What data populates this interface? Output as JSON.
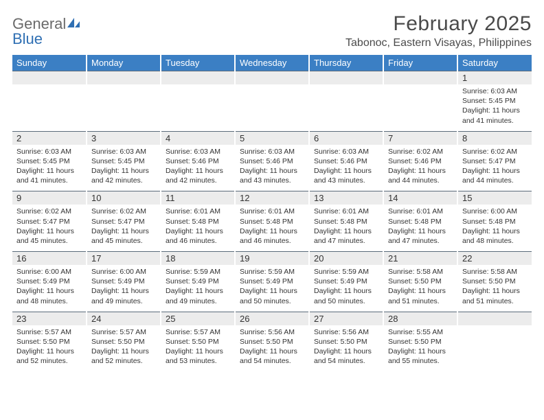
{
  "brand": {
    "general": "General",
    "blue": "Blue"
  },
  "title": "February 2025",
  "location": "Tabonoc, Eastern Visayas, Philippines",
  "colors": {
    "header_bg": "#3b7fc4",
    "header_text": "#ffffff",
    "numrow_bg": "#ececec",
    "numrow_border": "#5a6b7a",
    "body_text": "#333333",
    "page_bg": "#ffffff",
    "logo_gray": "#6a6a6a",
    "logo_blue": "#2f6fb3"
  },
  "typography": {
    "title_fontsize": 30,
    "location_fontsize": 16,
    "dayhead_fontsize": 13,
    "cell_fontsize": 10.5
  },
  "day_names": [
    "Sunday",
    "Monday",
    "Tuesday",
    "Wednesday",
    "Thursday",
    "Friday",
    "Saturday"
  ],
  "weeks": [
    {
      "nums": [
        "",
        "",
        "",
        "",
        "",
        "",
        "1"
      ],
      "cells": [
        null,
        null,
        null,
        null,
        null,
        null,
        {
          "sunrise": "Sunrise: 6:03 AM",
          "sunset": "Sunset: 5:45 PM",
          "daylight": "Daylight: 11 hours and 41 minutes."
        }
      ]
    },
    {
      "nums": [
        "2",
        "3",
        "4",
        "5",
        "6",
        "7",
        "8"
      ],
      "cells": [
        {
          "sunrise": "Sunrise: 6:03 AM",
          "sunset": "Sunset: 5:45 PM",
          "daylight": "Daylight: 11 hours and 41 minutes."
        },
        {
          "sunrise": "Sunrise: 6:03 AM",
          "sunset": "Sunset: 5:45 PM",
          "daylight": "Daylight: 11 hours and 42 minutes."
        },
        {
          "sunrise": "Sunrise: 6:03 AM",
          "sunset": "Sunset: 5:46 PM",
          "daylight": "Daylight: 11 hours and 42 minutes."
        },
        {
          "sunrise": "Sunrise: 6:03 AM",
          "sunset": "Sunset: 5:46 PM",
          "daylight": "Daylight: 11 hours and 43 minutes."
        },
        {
          "sunrise": "Sunrise: 6:03 AM",
          "sunset": "Sunset: 5:46 PM",
          "daylight": "Daylight: 11 hours and 43 minutes."
        },
        {
          "sunrise": "Sunrise: 6:02 AM",
          "sunset": "Sunset: 5:46 PM",
          "daylight": "Daylight: 11 hours and 44 minutes."
        },
        {
          "sunrise": "Sunrise: 6:02 AM",
          "sunset": "Sunset: 5:47 PM",
          "daylight": "Daylight: 11 hours and 44 minutes."
        }
      ]
    },
    {
      "nums": [
        "9",
        "10",
        "11",
        "12",
        "13",
        "14",
        "15"
      ],
      "cells": [
        {
          "sunrise": "Sunrise: 6:02 AM",
          "sunset": "Sunset: 5:47 PM",
          "daylight": "Daylight: 11 hours and 45 minutes."
        },
        {
          "sunrise": "Sunrise: 6:02 AM",
          "sunset": "Sunset: 5:47 PM",
          "daylight": "Daylight: 11 hours and 45 minutes."
        },
        {
          "sunrise": "Sunrise: 6:01 AM",
          "sunset": "Sunset: 5:48 PM",
          "daylight": "Daylight: 11 hours and 46 minutes."
        },
        {
          "sunrise": "Sunrise: 6:01 AM",
          "sunset": "Sunset: 5:48 PM",
          "daylight": "Daylight: 11 hours and 46 minutes."
        },
        {
          "sunrise": "Sunrise: 6:01 AM",
          "sunset": "Sunset: 5:48 PM",
          "daylight": "Daylight: 11 hours and 47 minutes."
        },
        {
          "sunrise": "Sunrise: 6:01 AM",
          "sunset": "Sunset: 5:48 PM",
          "daylight": "Daylight: 11 hours and 47 minutes."
        },
        {
          "sunrise": "Sunrise: 6:00 AM",
          "sunset": "Sunset: 5:48 PM",
          "daylight": "Daylight: 11 hours and 48 minutes."
        }
      ]
    },
    {
      "nums": [
        "16",
        "17",
        "18",
        "19",
        "20",
        "21",
        "22"
      ],
      "cells": [
        {
          "sunrise": "Sunrise: 6:00 AM",
          "sunset": "Sunset: 5:49 PM",
          "daylight": "Daylight: 11 hours and 48 minutes."
        },
        {
          "sunrise": "Sunrise: 6:00 AM",
          "sunset": "Sunset: 5:49 PM",
          "daylight": "Daylight: 11 hours and 49 minutes."
        },
        {
          "sunrise": "Sunrise: 5:59 AM",
          "sunset": "Sunset: 5:49 PM",
          "daylight": "Daylight: 11 hours and 49 minutes."
        },
        {
          "sunrise": "Sunrise: 5:59 AM",
          "sunset": "Sunset: 5:49 PM",
          "daylight": "Daylight: 11 hours and 50 minutes."
        },
        {
          "sunrise": "Sunrise: 5:59 AM",
          "sunset": "Sunset: 5:49 PM",
          "daylight": "Daylight: 11 hours and 50 minutes."
        },
        {
          "sunrise": "Sunrise: 5:58 AM",
          "sunset": "Sunset: 5:50 PM",
          "daylight": "Daylight: 11 hours and 51 minutes."
        },
        {
          "sunrise": "Sunrise: 5:58 AM",
          "sunset": "Sunset: 5:50 PM",
          "daylight": "Daylight: 11 hours and 51 minutes."
        }
      ]
    },
    {
      "nums": [
        "23",
        "24",
        "25",
        "26",
        "27",
        "28",
        ""
      ],
      "cells": [
        {
          "sunrise": "Sunrise: 5:57 AM",
          "sunset": "Sunset: 5:50 PM",
          "daylight": "Daylight: 11 hours and 52 minutes."
        },
        {
          "sunrise": "Sunrise: 5:57 AM",
          "sunset": "Sunset: 5:50 PM",
          "daylight": "Daylight: 11 hours and 52 minutes."
        },
        {
          "sunrise": "Sunrise: 5:57 AM",
          "sunset": "Sunset: 5:50 PM",
          "daylight": "Daylight: 11 hours and 53 minutes."
        },
        {
          "sunrise": "Sunrise: 5:56 AM",
          "sunset": "Sunset: 5:50 PM",
          "daylight": "Daylight: 11 hours and 54 minutes."
        },
        {
          "sunrise": "Sunrise: 5:56 AM",
          "sunset": "Sunset: 5:50 PM",
          "daylight": "Daylight: 11 hours and 54 minutes."
        },
        {
          "sunrise": "Sunrise: 5:55 AM",
          "sunset": "Sunset: 5:50 PM",
          "daylight": "Daylight: 11 hours and 55 minutes."
        },
        null
      ]
    }
  ]
}
